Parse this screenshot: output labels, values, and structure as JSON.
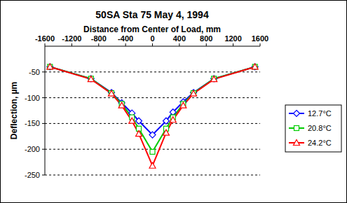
{
  "chart_data": {
    "type": "line",
    "title": "50SA  Sta 75  May 4, 1994",
    "x_label": "Distance from Center of Load, mm",
    "y_label": "Deflection, µm",
    "x": [
      -1524,
      -914,
      -610,
      -457,
      -305,
      -203,
      0,
      203,
      305,
      457,
      610,
      914,
      1524
    ],
    "series": [
      {
        "name": "12.7°C",
        "color": "#0000ff",
        "marker": "diamond",
        "values": [
          -40,
          -63,
          -90,
          -110,
          -130,
          -145,
          -172,
          -145,
          -128,
          -108,
          -90,
          -63,
          -40
        ]
      },
      {
        "name": "20.8°C",
        "color": "#00cc00",
        "marker": "square",
        "values": [
          -40,
          -63,
          -91,
          -112,
          -138,
          -160,
          -205,
          -160,
          -138,
          -112,
          -91,
          -63,
          -40
        ]
      },
      {
        "name": "24.2°C",
        "color": "#ff0000",
        "marker": "triangle",
        "values": [
          -40,
          -64,
          -92,
          -115,
          -145,
          -170,
          -232,
          -168,
          -143,
          -115,
          -92,
          -64,
          -40
        ]
      }
    ],
    "xlim": [
      -1600,
      1600
    ],
    "xticks": [
      -1600,
      -1200,
      -800,
      -400,
      0,
      400,
      800,
      1200,
      1600
    ],
    "ylim": [
      -250,
      0
    ],
    "yticks": [
      -250,
      -200,
      -150,
      -100,
      -50
    ],
    "grid": true,
    "legend": "right"
  }
}
